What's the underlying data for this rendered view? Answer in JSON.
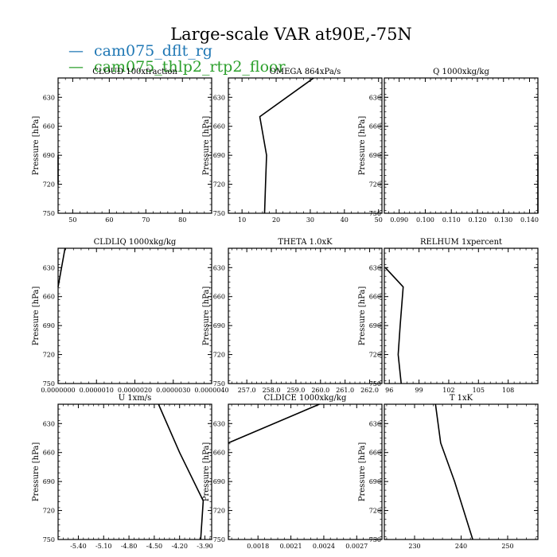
{
  "figure": {
    "title": "Large-scale VAR at90E,-75N",
    "legend": [
      {
        "label": "cam075_dflt_rg",
        "color": "#1f77b4"
      },
      {
        "label": "cam075_thlp2_rtp2_floor",
        "color": "#2ca02c"
      }
    ]
  },
  "chart_data": [
    {
      "type": "line",
      "title": "CLOUD  100xfraction",
      "ylabel": "Pressure [hPa]",
      "ylim": [
        750,
        610
      ],
      "xlim": [
        46,
        88
      ],
      "xticks": [
        50,
        60,
        70,
        80
      ],
      "xtick_labels": [
        "50",
        "60",
        "70",
        "80"
      ],
      "yticks": [
        630,
        660,
        690,
        720,
        750
      ],
      "series": [
        {
          "color": "#000000",
          "points": [
            [
              46,
              690
            ],
            [
              46,
              720
            ]
          ]
        }
      ]
    },
    {
      "type": "line",
      "title": "OMEGA  864xPa/s",
      "ylabel": "Pressure [hPa]",
      "ylim": [
        750,
        610
      ],
      "xlim": [
        6,
        51
      ],
      "xticks": [
        10,
        20,
        30,
        40,
        50
      ],
      "xtick_labels": [
        "10",
        "20",
        "30",
        "40",
        "50"
      ],
      "yticks": [
        630,
        660,
        690,
        720,
        750
      ],
      "series": [
        {
          "color": "#000000",
          "points": [
            [
              31,
              610
            ],
            [
              15.2,
              650
            ],
            [
              17.2,
              690
            ],
            [
              16.9,
              720
            ],
            [
              16.6,
              750
            ]
          ]
        }
      ]
    },
    {
      "type": "line",
      "title": "Q  1000xkg/kg",
      "ylabel": "Pressure [hPa]",
      "ylim": [
        750,
        610
      ],
      "xlim": [
        0.0843,
        0.1432
      ],
      "xticks": [
        0.09,
        0.1,
        0.11,
        0.12,
        0.13,
        0.14
      ],
      "xtick_labels": [
        "0.090",
        "0.100",
        "0.110",
        "0.120",
        "0.130",
        "0.140"
      ],
      "yticks": [
        630,
        660,
        690,
        720,
        750
      ],
      "series": [
        {
          "color": "#000000",
          "points": [
            [
              0.1432,
              690
            ],
            [
              0.1432,
              750
            ]
          ]
        }
      ]
    },
    {
      "type": "line",
      "title": "CLDLIQ  1000xkg/kg",
      "ylabel": "Pressure [hPa]",
      "ylim": [
        750,
        610
      ],
      "xlim": [
        0,
        4e-06
      ],
      "xticks": [
        0,
        1e-06,
        2e-06,
        3e-06,
        4e-06
      ],
      "xtick_labels": [
        "0.0000000",
        "0.0000010",
        "0.0000020",
        "0.0000030",
        "0.0000040"
      ],
      "yticks": [
        630,
        660,
        690,
        720,
        750
      ],
      "series": [
        {
          "color": "#000000",
          "points": [
            [
              1.8e-07,
              610
            ],
            [
              0,
              650
            ]
          ]
        }
      ]
    },
    {
      "type": "line",
      "title": "THETA  1.0xK",
      "ylabel": "Pressure [hPa]",
      "ylim": [
        750,
        610
      ],
      "xlim": [
        256.25,
        262.5
      ],
      "xticks": [
        257,
        258,
        259,
        260,
        261,
        262
      ],
      "xtick_labels": [
        "257.0",
        "258.0",
        "259.0",
        "260.0",
        "261.0",
        "262.0"
      ],
      "yticks": [
        630,
        660,
        690,
        720,
        750
      ],
      "series": []
    },
    {
      "type": "line",
      "title": "RELHUM  1xpercent",
      "ylabel": "Pressure [hPa]",
      "ylim": [
        750,
        610
      ],
      "xlim": [
        95.5,
        111
      ],
      "xticks": [
        96,
        99,
        102,
        105,
        108
      ],
      "xtick_labels": [
        "96",
        "99",
        "102",
        "105",
        "108"
      ],
      "yticks": [
        630,
        660,
        690,
        720,
        750
      ],
      "series": [
        {
          "color": "#000000",
          "points": [
            [
              95.6,
              630
            ],
            [
              97.4,
              650
            ],
            [
              97.1,
              690
            ],
            [
              96.9,
              720
            ],
            [
              97.2,
              750
            ]
          ]
        }
      ]
    },
    {
      "type": "line",
      "title": "U  1xm/s",
      "ylabel": "Pressure [hPa]",
      "ylim": [
        750,
        610
      ],
      "xlim": [
        -5.64,
        -3.82
      ],
      "xticks": [
        -5.4,
        -5.1,
        -4.8,
        -4.5,
        -4.2,
        -3.9
      ],
      "xtick_labels": [
        "-5.40",
        "-5.10",
        "-4.80",
        "-4.50",
        "-4.20",
        "-3.90"
      ],
      "yticks": [
        630,
        660,
        690,
        720,
        750
      ],
      "series": [
        {
          "color": "#000000",
          "points": [
            [
              -4.45,
              610
            ],
            [
              -4.2,
              660
            ],
            [
              -3.92,
              710
            ],
            [
              -3.95,
              750
            ]
          ]
        }
      ]
    },
    {
      "type": "line",
      "title": "CLDICE  1000xkg/kg",
      "ylabel": "Pressure [hPa]",
      "ylim": [
        750,
        610
      ],
      "xlim": [
        0.00153,
        0.00293
      ],
      "xticks": [
        0.0018,
        0.0021,
        0.0024,
        0.0027
      ],
      "xtick_labels": [
        "0.0018",
        "0.0021",
        "0.0024",
        "0.0027"
      ],
      "yticks": [
        630,
        660,
        690,
        720,
        750
      ],
      "series": [
        {
          "color": "#000000",
          "points": [
            [
              0.00236,
              610
            ],
            [
              0.00153,
              650
            ]
          ]
        }
      ]
    },
    {
      "type": "line",
      "title": "T  1xK",
      "ylabel": "Pressure [hPa]",
      "ylim": [
        750,
        610
      ],
      "xlim": [
        223.5,
        256.5
      ],
      "xticks": [
        230,
        240,
        250
      ],
      "xtick_labels": [
        "230",
        "240",
        "250"
      ],
      "yticks": [
        630,
        660,
        690,
        720,
        750
      ],
      "series": [
        {
          "color": "#000000",
          "points": [
            [
              234.5,
              610
            ],
            [
              235.6,
              650
            ],
            [
              238.6,
              690
            ],
            [
              242.5,
              750
            ]
          ]
        }
      ]
    }
  ]
}
